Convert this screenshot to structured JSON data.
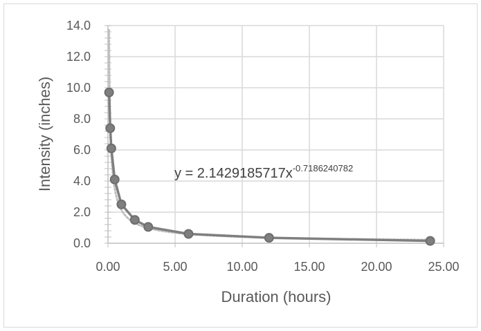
{
  "chart_data": {
    "type": "scatter",
    "title": "",
    "xlabel": "Duration (hours)",
    "ylabel": "Intensity (inches)",
    "xlim": [
      0,
      25
    ],
    "ylim": [
      0,
      14
    ],
    "x_ticks": [
      "0.00",
      "5.00",
      "10.00",
      "15.00",
      "20.00",
      "25.00"
    ],
    "y_ticks": [
      "0.0",
      "2.0",
      "4.0",
      "6.0",
      "8.0",
      "10.0",
      "12.0",
      "14.0"
    ],
    "grid": true,
    "legend": "none",
    "series": [
      {
        "marker_color": "#7f7f7f",
        "line_color": "#7f7f7f",
        "x": [
          0.083,
          0.167,
          0.25,
          0.5,
          1,
          2,
          3,
          6,
          12,
          24
        ],
        "y": [
          9.7,
          7.4,
          6.1,
          4.1,
          2.5,
          1.5,
          1.05,
          0.6,
          0.35,
          0.15
        ]
      }
    ],
    "trendline": {
      "type": "power",
      "color": "#bfbfbf",
      "style": "dotted",
      "a": 2.1429185717,
      "b": -0.7186240782,
      "label_prefix": "y = 2.1429185717x",
      "label_exponent": "-0.7186240782"
    }
  }
}
